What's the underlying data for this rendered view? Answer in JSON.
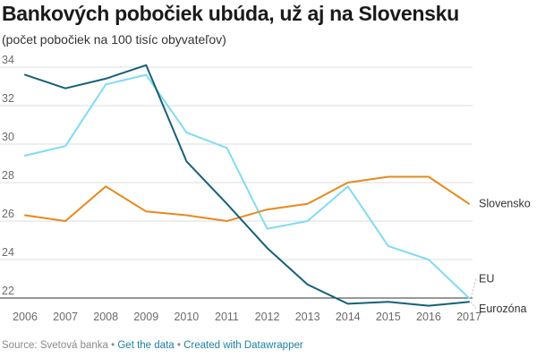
{
  "chart_data": {
    "type": "line",
    "title": "Bankových pobočiek ubúda, už aj na Slovensku",
    "subtitle": "(počet pobočiek na 100 tisíc obyvateľov)",
    "x": [
      2006,
      2007,
      2008,
      2009,
      2010,
      2011,
      2012,
      2013,
      2014,
      2015,
      2016,
      2017
    ],
    "xlabel": "",
    "ylabel": "",
    "ylim": [
      21.5,
      34.2
    ],
    "yticks": [
      22,
      24,
      26,
      28,
      30,
      32,
      34
    ],
    "grid": true,
    "legend": "direct labels at line ends (right)",
    "series": [
      {
        "name": "Slovensko",
        "color": "#e8891b",
        "values": [
          26.3,
          26.0,
          27.8,
          26.5,
          26.3,
          26.0,
          26.6,
          26.9,
          28.0,
          28.3,
          28.3,
          26.9
        ]
      },
      {
        "name": "EU",
        "color": "#7fdcf2",
        "values": [
          29.4,
          29.9,
          33.1,
          33.6,
          30.6,
          29.8,
          25.6,
          26.0,
          27.8,
          24.7,
          24.0,
          22.0
        ]
      },
      {
        "name": "Eurozóna",
        "color": "#15607a",
        "values": [
          33.6,
          32.9,
          33.4,
          34.1,
          29.1,
          26.9,
          24.6,
          22.7,
          21.7,
          21.8,
          21.6,
          21.8
        ]
      }
    ]
  },
  "footer": {
    "source": "Source: Svetová banka",
    "separator": "•",
    "get_data": "Get the data",
    "created_with": "Created with Datawrapper"
  }
}
